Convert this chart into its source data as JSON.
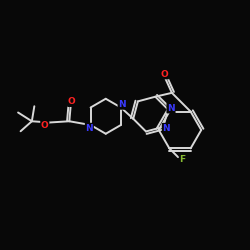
{
  "background_color": "#080808",
  "bond_color": "#d8d8d8",
  "bond_width": 1.4,
  "atom_colors": {
    "N": "#3a3aff",
    "O": "#ff2222",
    "F": "#88bb33",
    "C": "#d8d8d8"
  },
  "figsize": [
    2.5,
    2.5
  ],
  "dpi": 100,
  "xlim": [
    0,
    10
  ],
  "ylim": [
    0,
    10
  ]
}
